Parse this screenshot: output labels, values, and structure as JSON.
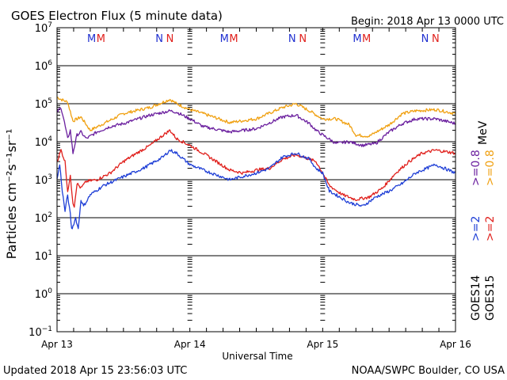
{
  "title": "GOES Electron Flux (5 minute data)",
  "begin": "Begin: 2018 Apr 13 0000 UTC",
  "updated": "Updated 2018 Apr 15 23:56:03 UTC",
  "credit": "NOAA/SWPC Boulder, CO USA",
  "colors": {
    "axis": "#000000",
    "goes14_high": "#1f3fd6",
    "goes15_high": "#e0201c",
    "goes14_low": "#6a1e9e",
    "goes15_low": "#f0a010",
    "marker_m_first": "#2030d0",
    "marker_m_second": "#e0201c",
    "marker_n_first": "#2030d0",
    "marker_n_second": "#e0201c"
  },
  "chart_data": {
    "type": "line",
    "title": "GOES Electron Flux (5 minute data)",
    "xlabel": "Universal Time",
    "ylabel": "Particles cm⁻²s⁻¹sr⁻¹",
    "y_scale": "log",
    "ylim": [
      0.1,
      10000000
    ],
    "y_ticks": [
      {
        "base": "10",
        "exp": "7"
      },
      {
        "base": "10",
        "exp": "6"
      },
      {
        "base": "10",
        "exp": "5"
      },
      {
        "base": "10",
        "exp": "4"
      },
      {
        "base": "10",
        "exp": "3"
      },
      {
        "base": "10",
        "exp": "2"
      },
      {
        "base": "10",
        "exp": "1"
      },
      {
        "base": "10",
        "exp": "0"
      },
      {
        "base": "10",
        "exp": "−1"
      }
    ],
    "x_unit": "day",
    "xlim": [
      0,
      3
    ],
    "x_ticks": [
      "Apr 13",
      "Apr 14",
      "Apr 15",
      "Apr 16"
    ],
    "grid": "horizontal at each decade",
    "reference_line": {
      "y": 1000,
      "style": "dashed"
    },
    "markers": [
      {
        "label": "M",
        "x": 0.26,
        "color_key": "marker_m_first"
      },
      {
        "label": "M",
        "x": 0.33,
        "color_key": "marker_m_second"
      },
      {
        "label": "N",
        "x": 0.77,
        "color_key": "marker_n_first"
      },
      {
        "label": "N",
        "x": 0.85,
        "color_key": "marker_n_second"
      },
      {
        "label": "M",
        "x": 1.26,
        "color_key": "marker_m_first"
      },
      {
        "label": "M",
        "x": 1.33,
        "color_key": "marker_m_second"
      },
      {
        "label": "N",
        "x": 1.77,
        "color_key": "marker_n_first"
      },
      {
        "label": "N",
        "x": 1.85,
        "color_key": "marker_n_second"
      },
      {
        "label": "M",
        "x": 2.26,
        "color_key": "marker_m_first"
      },
      {
        "label": "M",
        "x": 2.33,
        "color_key": "marker_m_second"
      },
      {
        "label": "N",
        "x": 2.77,
        "color_key": "marker_n_first"
      },
      {
        "label": "N",
        "x": 2.85,
        "color_key": "marker_n_second"
      }
    ],
    "legend": {
      "placement": "right",
      "groups": [
        {
          "label": "GOES14",
          "entries": [
            {
              "label": ">=2",
              "color_key": "goes14_high"
            },
            {
              "label": ">=0.8",
              "color_key": "goes14_low"
            }
          ]
        },
        {
          "label": "GOES15",
          "entries": [
            {
              "label": ">=2",
              "color_key": "goes15_high"
            },
            {
              "label": ">=0.8",
              "color_key": "goes15_low"
            }
          ]
        }
      ],
      "unit": "MeV"
    },
    "series": [
      {
        "name": "GOES15 >=0.8 MeV",
        "color_key": "goes15_low",
        "x": [
          0,
          0.03,
          0.08,
          0.12,
          0.18,
          0.25,
          0.35,
          0.5,
          0.7,
          0.85,
          0.9,
          1.0,
          1.1,
          1.3,
          1.5,
          1.7,
          1.8,
          1.9,
          2.0,
          2.1,
          2.2,
          2.25,
          2.35,
          2.5,
          2.6,
          2.7,
          2.85,
          3.0
        ],
        "y": [
          150000,
          130000,
          110000,
          35000,
          45000,
          20000,
          30000,
          55000,
          80000,
          130000,
          100000,
          70000,
          55000,
          32000,
          40000,
          80000,
          100000,
          65000,
          40000,
          40000,
          28000,
          15000,
          14000,
          28000,
          55000,
          65000,
          70000,
          55000
        ]
      },
      {
        "name": "GOES14 >=0.8 MeV",
        "color_key": "goes14_low",
        "x": [
          0,
          0.03,
          0.05,
          0.08,
          0.1,
          0.12,
          0.15,
          0.18,
          0.22,
          0.3,
          0.4,
          0.5,
          0.7,
          0.85,
          0.9,
          1.0,
          1.1,
          1.3,
          1.5,
          1.7,
          1.8,
          1.9,
          1.95,
          2.0,
          2.1,
          2.2,
          2.3,
          2.4,
          2.5,
          2.6,
          2.7,
          2.85,
          3.0
        ],
        "y": [
          60000,
          80000,
          40000,
          12000,
          20000,
          5000,
          15000,
          18000,
          12000,
          18000,
          25000,
          30000,
          50000,
          65000,
          60000,
          40000,
          25000,
          18000,
          22000,
          45000,
          50000,
          30000,
          20000,
          15000,
          9000,
          10000,
          8000,
          9000,
          18000,
          30000,
          40000,
          40000,
          30000
        ]
      },
      {
        "name": "GOES15 >=2 MeV",
        "color_key": "goes15_high",
        "x": [
          0,
          0.03,
          0.06,
          0.08,
          0.1,
          0.12,
          0.13,
          0.15,
          0.18,
          0.22,
          0.3,
          0.4,
          0.5,
          0.6,
          0.7,
          0.8,
          0.85,
          0.9,
          1.0,
          1.1,
          1.2,
          1.3,
          1.4,
          1.5,
          1.6,
          1.7,
          1.8,
          1.9,
          1.95,
          2.0,
          2.05,
          2.15,
          2.25,
          2.35,
          2.45,
          2.55,
          2.65,
          2.75,
          2.85,
          3.0
        ],
        "y": [
          3000,
          6000,
          3000,
          500,
          1200,
          250,
          200,
          800,
          600,
          900,
          1000,
          1500,
          3000,
          5000,
          8000,
          15000,
          20000,
          12000,
          8000,
          5000,
          3000,
          1800,
          1500,
          1800,
          2000,
          3500,
          4500,
          3500,
          3000,
          1500,
          700,
          400,
          300,
          350,
          600,
          1500,
          3000,
          5000,
          6000,
          5000
        ]
      },
      {
        "name": "GOES14 >=2 MeV",
        "color_key": "goes14_high",
        "x": [
          0,
          0.02,
          0.04,
          0.06,
          0.08,
          0.1,
          0.11,
          0.12,
          0.14,
          0.16,
          0.18,
          0.2,
          0.25,
          0.35,
          0.5,
          0.65,
          0.8,
          0.85,
          0.9,
          1.0,
          1.1,
          1.3,
          1.5,
          1.6,
          1.7,
          1.8,
          1.9,
          1.95,
          2.0,
          2.05,
          2.1,
          2.2,
          2.3,
          2.4,
          2.5,
          2.6,
          2.7,
          2.85,
          3.0
        ],
        "y": [
          1000,
          2500,
          500,
          150,
          400,
          120,
          50,
          60,
          100,
          50,
          300,
          200,
          400,
          700,
          1200,
          2000,
          4000,
          6000,
          5000,
          2500,
          1800,
          1000,
          1500,
          2000,
          4000,
          5000,
          3500,
          2000,
          1500,
          500,
          400,
          250,
          200,
          350,
          500,
          800,
          1500,
          2500,
          1500
        ]
      }
    ]
  }
}
